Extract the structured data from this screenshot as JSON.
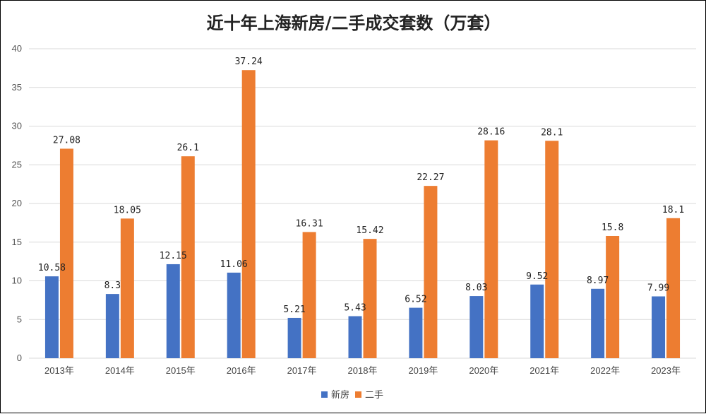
{
  "chart_data": {
    "type": "bar",
    "title": "近十年上海新房/二手成交套数（万套）",
    "categories": [
      "2013年",
      "2014年",
      "2015年",
      "2016年",
      "2017年",
      "2018年",
      "2019年",
      "2020年",
      "2021年",
      "2022年",
      "2023年"
    ],
    "series": [
      {
        "name": "新房",
        "color": "#4472C4",
        "values": [
          10.58,
          8.3,
          12.15,
          11.06,
          5.21,
          5.43,
          6.52,
          8.03,
          9.52,
          8.97,
          7.99
        ],
        "labels": [
          "10.58",
          "8.3",
          "12.15",
          "11.06",
          "5.21",
          "5.43",
          "6.52",
          "8.03",
          "9.52",
          "8.97",
          "7.99"
        ]
      },
      {
        "name": "二手",
        "color": "#ED7D31",
        "values": [
          27.08,
          18.05,
          26.1,
          37.24,
          16.31,
          15.42,
          22.27,
          28.16,
          28.1,
          15.8,
          18.1
        ],
        "labels": [
          "27.08",
          "18.05",
          "26.1",
          "37.24",
          "16.31",
          "15.42",
          "22.27",
          "28.16",
          "28.1",
          "15.8",
          "18.1"
        ]
      }
    ],
    "ylim": [
      0,
      40
    ],
    "yticks": [
      "0",
      "5",
      "10",
      "15",
      "20",
      "25",
      "30",
      "35",
      "40"
    ],
    "grid": true,
    "legend_position": "bottom",
    "gridline_color": "#D9D9D9"
  }
}
